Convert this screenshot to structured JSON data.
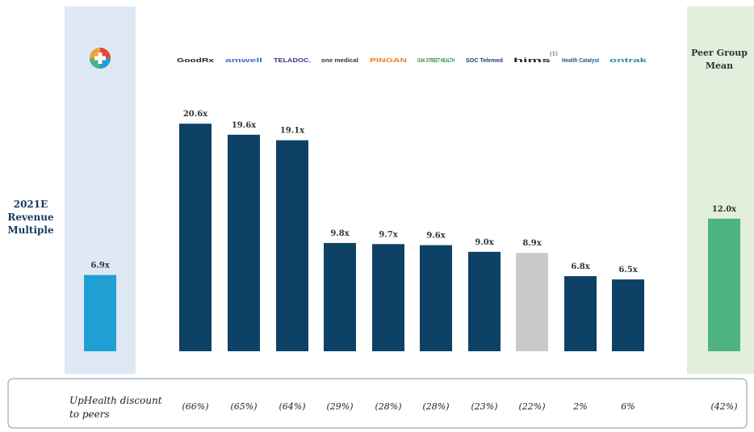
{
  "chart_data": {
    "type": "bar",
    "y_axis_label": "2021E Revenue Multiple",
    "categories": [
      null,
      "GoodRx",
      "amwell",
      "TELADOC.",
      "one medical",
      "PINGAN",
      "OAK STREET HEALTH",
      "SOC Telemed",
      "hims",
      "Health Catalyst",
      "ontrak",
      "Peer Group Mean"
    ],
    "hims_note": "(1)",
    "values": [
      6.9,
      20.6,
      19.6,
      19.1,
      9.8,
      9.7,
      9.6,
      9.0,
      8.9,
      6.8,
      6.5,
      12.0
    ],
    "value_labels": [
      "6.9x",
      "20.6x",
      "19.6x",
      "19.1x",
      "9.8x",
      "9.7x",
      "9.6x",
      "9.0x",
      "8.9x",
      "6.8x",
      "6.5x",
      "12.0x"
    ],
    "colors": [
      "#1f9fd4",
      "#0d4266",
      "#0d4266",
      "#0d4266",
      "#0d4266",
      "#0d4266",
      "#0d4266",
      "#0d4266",
      "#c9c9c9",
      "#0d4266",
      "#0d4266",
      "#4fb381"
    ],
    "logo_colors": [
      null,
      "#222222",
      "#3a6fd8",
      "#4b2a8c",
      "#333333",
      "#f07a1a",
      "#2f8c3a",
      "#1d3f7a",
      "#222222",
      "#1f5a8c",
      "#2a8c9c",
      "#333333"
    ],
    "ylim": [
      0,
      22
    ],
    "discount_label": "UpHealth discount to peers",
    "discounts": [
      null,
      "(66%)",
      "(65%)",
      "(64%)",
      "(29%)",
      "(28%)",
      "(28%)",
      "(23%)",
      "(22%)",
      "2%",
      "6%",
      "(42%)"
    ]
  }
}
